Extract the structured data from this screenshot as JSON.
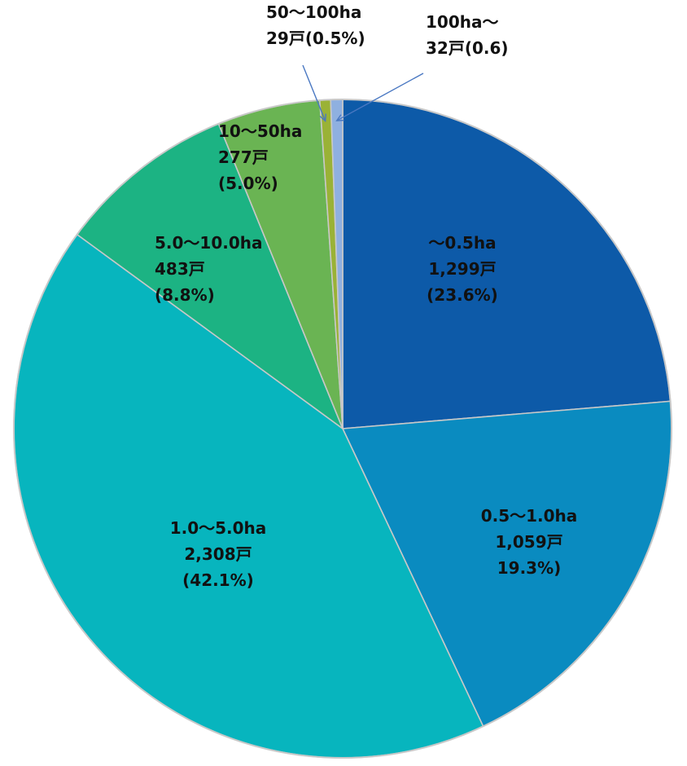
{
  "chart_data": {
    "type": "pie",
    "title": "",
    "slices": [
      {
        "label": "～0.5ha",
        "value": 1299,
        "value_label": "1,299戸",
        "percent_label": "(23.6%)",
        "color": "#0d5aa8"
      },
      {
        "label": "0.5～1.0ha",
        "value": 1059,
        "value_label": "1,059戸",
        "percent_label": "19.3%)",
        "color": "#0a8bc0"
      },
      {
        "label": "1.0～5.0ha",
        "value": 2308,
        "value_label": "2,308戸",
        "percent_label": "(42.1%)",
        "color": "#07b5be"
      },
      {
        "label": "5.0～10.0ha",
        "value": 483,
        "value_label": "483戸",
        "percent_label": "(8.8%)",
        "color": "#1cb383"
      },
      {
        "label": "10～50ha",
        "value": 277,
        "value_label": "277戸",
        "percent_label": "(5.0%)",
        "color": "#6ab453"
      },
      {
        "label": "50～100ha",
        "value": 29,
        "value_label": "29戸(0.5%)",
        "percent_label": "",
        "color": "#9ab236"
      },
      {
        "label": "100ha～",
        "value": 32,
        "value_label": "32戸(0.6)",
        "percent_label": "",
        "color": "#8fb0e0"
      }
    ],
    "start": "12 o'clock",
    "direction": "clockwise",
    "legend": "none"
  }
}
